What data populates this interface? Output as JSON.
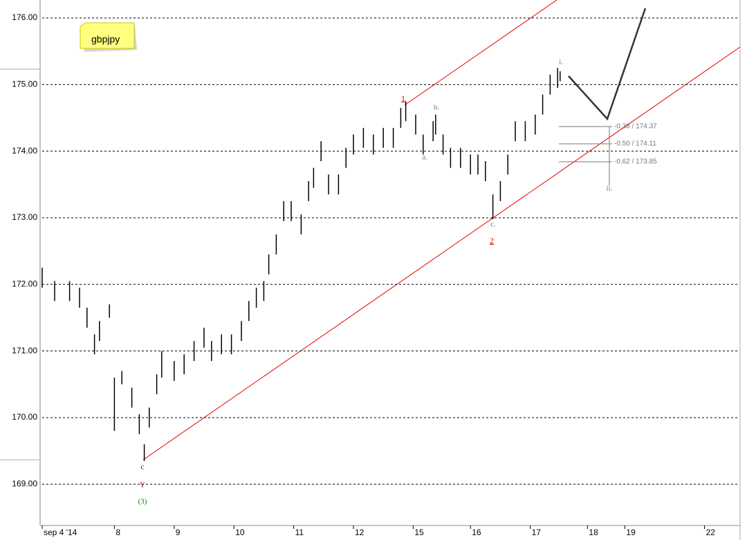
{
  "chart_data": {
    "type": "ohlc",
    "title": "gbpjpy",
    "x": [
      0,
      5,
      11,
      15,
      18,
      21,
      23,
      27,
      29,
      32,
      36,
      39,
      41,
      43,
      46,
      48,
      53,
      57,
      61,
      65,
      68,
      72,
      76,
      80,
      83,
      86,
      89,
      91,
      94,
      97,
      100,
      104,
      107,
      109,
      112,
      115,
      119,
      122,
      125,
      129,
      133,
      137,
      141,
      144,
      146,
      150,
      153,
      157,
      158,
      161,
      164,
      168,
      172,
      175,
      178,
      181,
      184,
      187,
      190,
      194,
      198,
      201,
      204,
      207,
      208
    ],
    "series": [
      {
        "name": "high",
        "color": "#000000",
        "values": [
          172.25,
          172.05,
          172.05,
          171.95,
          171.65,
          171.25,
          171.45,
          171.7,
          170.6,
          170.7,
          170.45,
          170.05,
          169.6,
          170.15,
          170.65,
          171.0,
          170.85,
          170.95,
          171.15,
          171.35,
          171.15,
          171.25,
          171.25,
          171.45,
          171.75,
          171.95,
          172.05,
          172.45,
          172.75,
          173.25,
          173.25,
          173.05,
          173.55,
          173.75,
          174.15,
          173.65,
          173.65,
          174.05,
          174.25,
          174.35,
          174.25,
          174.35,
          174.35,
          174.65,
          174.75,
          174.55,
          174.25,
          174.45,
          174.55,
          174.25,
          174.05,
          174.05,
          173.95,
          173.95,
          173.85,
          173.35,
          173.55,
          173.95,
          174.45,
          174.45,
          174.55,
          174.85,
          175.15,
          175.25,
          175.2
        ]
      },
      {
        "name": "low",
        "color": "#000000",
        "values": [
          171.95,
          171.75,
          171.75,
          171.65,
          171.35,
          170.95,
          171.15,
          171.5,
          169.8,
          170.5,
          170.15,
          169.75,
          169.35,
          169.85,
          170.35,
          170.6,
          170.55,
          170.65,
          170.85,
          171.05,
          170.85,
          170.95,
          170.95,
          171.15,
          171.45,
          171.65,
          171.75,
          172.15,
          172.45,
          172.95,
          172.95,
          172.75,
          173.25,
          173.45,
          173.85,
          173.35,
          173.35,
          173.75,
          173.95,
          174.05,
          173.95,
          174.05,
          174.05,
          174.35,
          174.45,
          174.25,
          173.95,
          174.15,
          174.25,
          173.95,
          173.75,
          173.75,
          173.65,
          173.65,
          173.55,
          172.98,
          173.25,
          173.65,
          174.15,
          174.15,
          174.25,
          174.55,
          174.85,
          174.95,
          175.05
        ]
      }
    ],
    "ylim": [
      168.38,
      176.27
    ],
    "yticks": [
      {
        "value": 169,
        "label": "169.00"
      },
      {
        "value": 170,
        "label": "170.00"
      },
      {
        "value": 171,
        "label": "171.00"
      },
      {
        "value": 172,
        "label": "172.00"
      },
      {
        "value": 173,
        "label": "173.00"
      },
      {
        "value": 174,
        "label": "174.00"
      },
      {
        "value": 175,
        "label": "175.00"
      },
      {
        "value": 176,
        "label": "176.00"
      }
    ],
    "xlim": [
      0,
      280
    ],
    "xticks": [
      {
        "value": 0,
        "label": "sep 4 '14"
      },
      {
        "value": 29,
        "label": "8"
      },
      {
        "value": 53,
        "label": "9"
      },
      {
        "value": 77,
        "label": "10"
      },
      {
        "value": 101,
        "label": "11"
      },
      {
        "value": 125,
        "label": "12"
      },
      {
        "value": 149,
        "label": "15"
      },
      {
        "value": 172,
        "label": "16"
      },
      {
        "value": 196,
        "label": "17"
      },
      {
        "value": 219,
        "label": "18"
      },
      {
        "value": 234,
        "label": "19"
      },
      {
        "value": 266,
        "label": "22"
      }
    ],
    "grid": true,
    "annotations": [
      "1",
      "2",
      "a.",
      "b.",
      "c.",
      "i.",
      "ii.",
      "c",
      "Y",
      "(3)",
      "-0.38 / 174.37",
      "-0.50 / 174.11",
      "-0.62 / 173.85"
    ]
  }
}
